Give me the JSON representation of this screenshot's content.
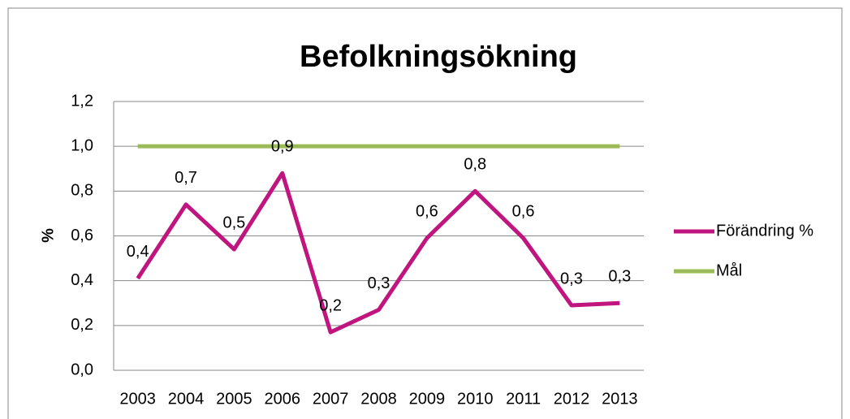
{
  "chart_data": {
    "type": "line",
    "title": "Befolkningsökning",
    "y_label": "%",
    "categories": [
      "2003",
      "2004",
      "2005",
      "2006",
      "2007",
      "2008",
      "2009",
      "2010",
      "2011",
      "2012",
      "2013"
    ],
    "series": [
      {
        "name": "Förändring %",
        "color": "#c0157f",
        "values": [
          0.41,
          0.74,
          0.54,
          0.88,
          0.17,
          0.27,
          0.59,
          0.8,
          0.59,
          0.29,
          0.3
        ],
        "value_labels": [
          "0,4",
          "0,7",
          "0,5",
          "0,9",
          "0,2",
          "0,3",
          "0,6",
          "0,8",
          "0,6",
          "0,3",
          "0,3"
        ]
      },
      {
        "name": "Mål",
        "color": "#9bbb59",
        "values": [
          1,
          1,
          1,
          1,
          1,
          1,
          1,
          1,
          1,
          1,
          1
        ]
      }
    ],
    "ylim": [
      0,
      1.2
    ],
    "yticks": [
      {
        "value": 0,
        "label": "0,0"
      },
      {
        "value": 0.2,
        "label": "0,2"
      },
      {
        "value": 0.4,
        "label": "0,4"
      },
      {
        "value": 0.6,
        "label": "0,6"
      },
      {
        "value": 0.8,
        "label": "0,8"
      },
      {
        "value": 1,
        "label": "1,0"
      },
      {
        "value": 1.2,
        "label": "1,2"
      }
    ],
    "grid": true,
    "legend": "right"
  }
}
